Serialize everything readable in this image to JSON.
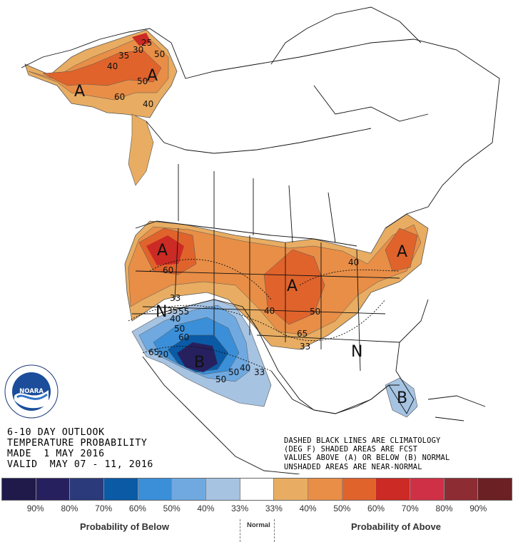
{
  "info": {
    "line1": "6-10 DAY OUTLOOK",
    "line2": "TEMPERATURE PROBABILITY",
    "line3": "MADE  1 MAY 2016",
    "line4": "VALID  MAY 07 - 11, 2016"
  },
  "legend_note": {
    "line1": "DASHED BLACK LINES ARE CLIMATOLOGY",
    "line2": "(DEG F) SHADED AREAS ARE FCST",
    "line3": "VALUES ABOVE (A) OR BELOW (B) NORMAL",
    "line4": "UNSHADED AREAS ARE NEAR-NORMAL"
  },
  "logo": {
    "text": "NOARA",
    "ring_text": "NATIONAL OCEANIC AND ATMOSPHERIC ADMINISTRATION · U.S. DEPARTMENT OF COMMERCE"
  },
  "map_labels": {
    "a_alaska_1": "A",
    "a_alaska_2": "A",
    "a_northwest": "A",
    "a_midwest": "A",
    "a_northeast": "A",
    "b_southwest": "B",
    "b_florida": "B",
    "n_west": "N",
    "n_southeast": "N",
    "c25": "25",
    "c30": "30",
    "c35": "35",
    "c40a": "40",
    "c50a": "50",
    "c50b": "50",
    "c40b": "40",
    "c60a": "60",
    "c40c": "40",
    "c50c": "50",
    "c60b": "60",
    "c65a": "65",
    "c33a": "33",
    "c33b": "33",
    "c35b": "35",
    "c55": "55",
    "c40d": "40",
    "c50d": "50",
    "c60c": "60",
    "c65b": "65",
    "c20": "20",
    "c40e": "40",
    "c50e": "50",
    "c33c": "33",
    "c40f": "40",
    "c50f": "50"
  },
  "colors": {
    "below": [
      "#1f1a4a",
      "#27205e",
      "#2a3a7a",
      "#0a5aa5",
      "#3a8fd8",
      "#6fa9e0",
      "#a6c3e2"
    ],
    "normal": "#ffffff",
    "above": [
      "#e8ad62",
      "#e88e47",
      "#e0632c",
      "#cc2a24",
      "#cf3045",
      "#8e2c34",
      "#6b2024"
    ]
  },
  "colorbar": {
    "ticks": [
      "90%",
      "80%",
      "70%",
      "60%",
      "50%",
      "40%",
      "33%",
      "33%",
      "40%",
      "50%",
      "60%",
      "70%",
      "80%",
      "90%"
    ],
    "below_title": "Probability of Below",
    "normal_title": "Normal",
    "above_title": "Probability of Above"
  }
}
